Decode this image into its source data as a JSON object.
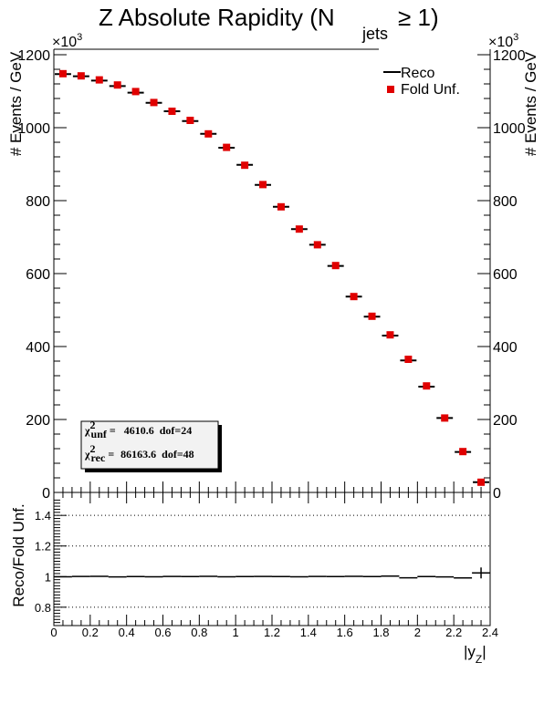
{
  "chart_data": [
    {
      "type": "scatter",
      "title_main": "Z Absolute Rapidity (N",
      "title_sub": "jets",
      "title_tail": "≥ 1)",
      "ylabel": "# Events / GeV",
      "exponent_base": "×10",
      "exponent_power": "3",
      "xlim": [
        0,
        2.4
      ],
      "ylim": [
        0,
        1200
      ],
      "yticks": [
        0,
        200,
        400,
        600,
        800,
        1000,
        1200
      ],
      "ytick_labels": [
        "0",
        "200",
        "400",
        "600",
        "800",
        "1000",
        "1200"
      ],
      "x": [
        0.05,
        0.15,
        0.25,
        0.35,
        0.45,
        0.55,
        0.65,
        0.75,
        0.85,
        0.95,
        1.05,
        1.15,
        1.25,
        1.35,
        1.45,
        1.55,
        1.65,
        1.75,
        1.85,
        1.95,
        2.05,
        2.15,
        2.25,
        2.35
      ],
      "series": [
        {
          "name": "Reco",
          "marker": "horizontal-line",
          "color": "#000000",
          "values": [
            1147,
            1141,
            1129,
            1114,
            1096,
            1068,
            1045,
            1018,
            983,
            945,
            898,
            843,
            783,
            722,
            679,
            621,
            537,
            482,
            430,
            362,
            290,
            204,
            111,
            28
          ]
        },
        {
          "name": "Fold Unf.",
          "marker": "square",
          "color": "#e00000",
          "values": [
            1148,
            1142,
            1131,
            1117,
            1099,
            1069,
            1045,
            1020,
            983,
            946,
            897,
            844,
            783,
            722,
            679,
            622,
            537,
            483,
            432,
            365,
            292,
            204,
            112,
            28
          ]
        }
      ],
      "stats": {
        "unf_label": "unf",
        "unf_value": "4610.6",
        "unf_dof": "dof=24",
        "rec_label": "rec",
        "rec_value": "86163.6",
        "rec_dof": "dof=48",
        "chi_symbol": "χ",
        "chi_power": "2"
      },
      "legend_position": "top-right"
    },
    {
      "type": "scatter",
      "ylabel": "Reco/Fold Unf.",
      "xlabel_main": "|y",
      "xlabel_sub": "Z",
      "xlabel_tail": "|",
      "xlim": [
        0,
        2.4
      ],
      "ylim": [
        0.68,
        1.55
      ],
      "yticks": [
        0.8,
        1,
        1.2,
        1.4
      ],
      "ytick_labels": [
        "0.8",
        "1",
        "1.2",
        "1.4"
      ],
      "xticks": [
        0,
        0.2,
        0.4,
        0.6,
        0.8,
        1,
        1.2,
        1.4,
        1.6,
        1.8,
        2,
        2.2,
        2.4
      ],
      "xtick_labels": [
        "0",
        "0.2",
        "0.4",
        "0.6",
        "0.8",
        "1",
        "1.2",
        "1.4",
        "1.6",
        "1.8",
        "2",
        "2.2",
        "2.4"
      ],
      "grid_y": [
        0.8,
        1.2,
        1.4
      ],
      "x": [
        0.05,
        0.15,
        0.25,
        0.35,
        0.45,
        0.55,
        0.65,
        0.75,
        0.85,
        0.95,
        1.05,
        1.15,
        1.25,
        1.35,
        1.45,
        1.55,
        1.65,
        1.75,
        1.85,
        1.95,
        2.05,
        2.15,
        2.25,
        2.35
      ],
      "values": [
        0.999,
        1.001,
        1.002,
        0.998,
        1.0,
        0.999,
        1.001,
        1.0,
        1.002,
        0.999,
        1.0,
        1.001,
        1.0,
        0.999,
        1.001,
        1.0,
        1.002,
        1.0,
        1.003,
        0.992,
        1.0,
        0.998,
        0.991,
        1.024
      ]
    }
  ]
}
